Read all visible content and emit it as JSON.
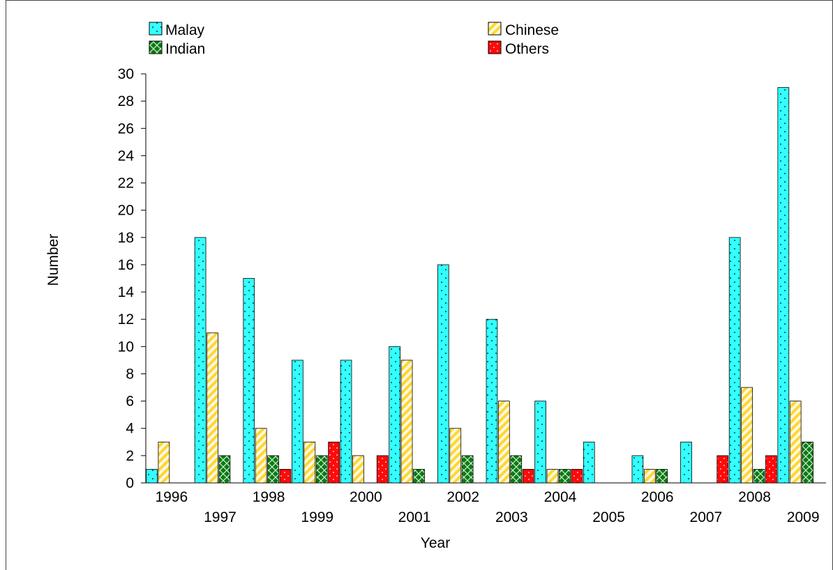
{
  "chart_data": {
    "type": "bar",
    "title": "",
    "xlabel": "Year",
    "ylabel": "Number",
    "ylim": [
      0,
      30
    ],
    "yticks": [
      "0",
      "2",
      "4",
      "6",
      "8",
      "10",
      "12",
      "14",
      "16",
      "18",
      "20",
      "22",
      "24",
      "26",
      "28",
      "30"
    ],
    "categories": [
      "1996",
      "1997",
      "1998",
      "1999",
      "2000",
      "2001",
      "2002",
      "2003",
      "2004",
      "2005",
      "2006",
      "2007",
      "2008",
      "2009"
    ],
    "legend_position": "top",
    "series": [
      {
        "name": "Malay",
        "color": "#33FFFF",
        "pattern": "dots",
        "values": [
          1,
          18,
          15,
          9,
          9,
          10,
          16,
          12,
          6,
          3,
          2,
          3,
          18,
          29
        ]
      },
      {
        "name": "Chinese",
        "color": "#FFD633",
        "pattern": "diagonal-stripes",
        "values": [
          3,
          11,
          4,
          3,
          2,
          9,
          4,
          6,
          1,
          0,
          1,
          0,
          7,
          6
        ]
      },
      {
        "name": "Indian",
        "color": "#0A7A14",
        "pattern": "crosshatch",
        "values": [
          0,
          2,
          2,
          2,
          0,
          1,
          2,
          2,
          1,
          0,
          1,
          0,
          1,
          3
        ]
      },
      {
        "name": "Others",
        "color": "#FF0A0A",
        "pattern": "dots",
        "values": [
          0,
          0,
          1,
          3,
          2,
          0,
          0,
          1,
          1,
          0,
          0,
          2,
          2,
          0
        ]
      }
    ]
  }
}
